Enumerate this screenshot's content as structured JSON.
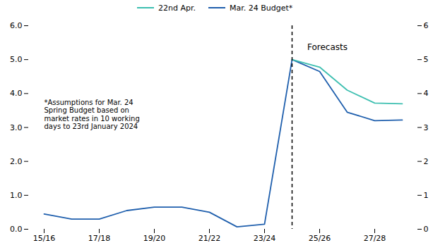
{
  "chart_data": {
    "type": "line",
    "categories": [
      "15/16",
      null,
      "17/18",
      null,
      "19/20",
      null,
      "21/22",
      null,
      "23/24",
      null,
      "25/26",
      null,
      "27/28",
      null
    ],
    "series": [
      {
        "name": "22nd Apr.",
        "color": "#3dbfb0",
        "values": [
          null,
          null,
          null,
          null,
          null,
          null,
          null,
          null,
          null,
          5.0,
          4.78,
          4.1,
          3.72,
          3.7
        ]
      },
      {
        "name": "Mar. 24 Budget*",
        "color": "#1f5fad",
        "values": [
          0.45,
          0.3,
          0.3,
          0.55,
          0.65,
          0.65,
          0.5,
          0.07,
          0.15,
          5.0,
          4.65,
          3.45,
          3.2,
          3.22
        ]
      }
    ],
    "ylim": [
      0,
      6
    ],
    "yticks": [
      0,
      1,
      2,
      3,
      4,
      5,
      6
    ],
    "y2lim": [
      0,
      6
    ],
    "y2ticks": [
      0,
      1,
      2,
      3,
      4,
      5,
      6
    ],
    "grid": false,
    "legend": "upper left",
    "vline": {
      "position": 9,
      "color": "#000000",
      "line_style": "dashed"
    },
    "annotations": [
      {
        "text": "*Assumptions for Mar. 24\nSpring Budget based on\nmarket rates in 10 working\ndays to 23rd January 2024"
      },
      {
        "text": "Forecasts"
      }
    ]
  }
}
